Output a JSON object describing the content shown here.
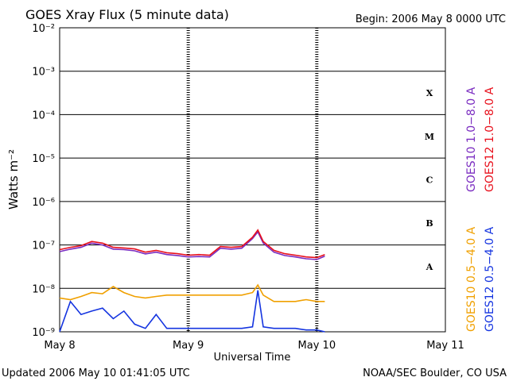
{
  "chart_data": {
    "type": "line",
    "title": "GOES Xray Flux (5 minute data)",
    "subtitle": "Begin:  2006 May 8 0000 UTC",
    "xlabel": "Universal Time",
    "ylabel": "Watts m⁻²",
    "footer_left": "Updated 2006 May 10 01:41:05 UTC",
    "footer_right": "NOAA/SEC Boulder, CO USA",
    "log_y": true,
    "grid": true,
    "xlim": [
      0,
      72
    ],
    "xticks": [
      {
        "value": 0,
        "label": "May 8"
      },
      {
        "value": 24,
        "label": "May 9"
      },
      {
        "value": 48,
        "label": "May 10"
      },
      {
        "value": 72,
        "label": "May 11"
      }
    ],
    "ylim": [
      1e-09,
      0.01
    ],
    "yticks": [
      {
        "value": 1e-09,
        "label": "10⁻⁹"
      },
      {
        "value": 1e-08,
        "label": "10⁻⁸"
      },
      {
        "value": 1e-07,
        "label": "10⁻⁷"
      },
      {
        "value": 1e-06,
        "label": "10⁻⁶"
      },
      {
        "value": 1e-05,
        "label": "10⁻⁵"
      },
      {
        "value": 0.0001,
        "label": "10⁻⁴"
      },
      {
        "value": 0.001,
        "label": "10⁻³"
      },
      {
        "value": 0.01,
        "label": "10⁻²"
      }
    ],
    "flare_classes": [
      "X",
      "M",
      "C",
      "B",
      "A"
    ],
    "x": [
      0,
      2,
      4,
      6,
      8,
      10,
      12,
      14,
      16,
      18,
      20,
      22,
      24,
      26,
      28,
      30,
      32,
      34,
      36,
      37,
      38,
      40,
      42,
      44,
      46,
      48,
      49.5
    ],
    "series": [
      {
        "name": "GOES10 1.0−8.0 A",
        "color": "#7a2cc0",
        "values": [
          7e-08,
          8e-08,
          8.8e-08,
          1.1e-07,
          1e-07,
          8e-08,
          7.8e-08,
          7.3e-08,
          6.2e-08,
          6.8e-08,
          6e-08,
          5.7e-08,
          5.3e-08,
          5.4e-08,
          5.3e-08,
          8.4e-08,
          8e-08,
          8.4e-08,
          1.4e-07,
          2e-07,
          1.1e-07,
          6.8e-08,
          5.7e-08,
          5.3e-08,
          4.8e-08,
          4.6e-08,
          5.5e-08
        ]
      },
      {
        "name": "GOES12 1.0−8.0 A",
        "color": "#e8101c",
        "values": [
          7.8e-08,
          8.8e-08,
          9.6e-08,
          1.2e-07,
          1.1e-07,
          8.8e-08,
          8.5e-08,
          8.1e-08,
          6.8e-08,
          7.5e-08,
          6.6e-08,
          6.3e-08,
          5.8e-08,
          6e-08,
          5.8e-08,
          9.2e-08,
          8.8e-08,
          9.2e-08,
          1.5e-07,
          2.2e-07,
          1.2e-07,
          7.5e-08,
          6.3e-08,
          5.8e-08,
          5.3e-08,
          5.1e-08,
          6e-08
        ]
      },
      {
        "name": "GOES10 0.5−4.0 A",
        "color": "#f0a000",
        "values": [
          6e-09,
          5.5e-09,
          6.5e-09,
          8e-09,
          7.5e-09,
          1.1e-08,
          8e-09,
          6.5e-09,
          6e-09,
          6.5e-09,
          7e-09,
          7e-09,
          7e-09,
          7e-09,
          7e-09,
          7e-09,
          7e-09,
          7e-09,
          8e-09,
          1.2e-08,
          7e-09,
          5e-09,
          5e-09,
          5e-09,
          5.5e-09,
          5e-09,
          5e-09
        ]
      },
      {
        "name": "GOES12 0.5−4.0 A",
        "color": "#1434e0",
        "values": [
          1e-09,
          5e-09,
          2.5e-09,
          3e-09,
          3.5e-09,
          2e-09,
          3e-09,
          1.5e-09,
          1.2e-09,
          2.5e-09,
          1.2e-09,
          1.2e-09,
          1.2e-09,
          1.2e-09,
          1.2e-09,
          1.2e-09,
          1.2e-09,
          1.2e-09,
          1.3e-09,
          9e-09,
          1.3e-09,
          1.2e-09,
          1.2e-09,
          1.2e-09,
          1.1e-09,
          1.1e-09,
          1e-09
        ]
      }
    ]
  }
}
